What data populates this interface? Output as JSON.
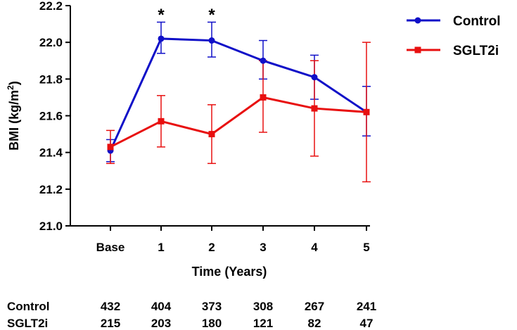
{
  "chart_data": {
    "type": "line",
    "title": "",
    "xlabel": "Time (Years)",
    "ylabel": "BMI (kg/m",
    "ylabel_superscript": "2",
    "ylabel_close": ")",
    "categories": [
      "Base",
      "1",
      "2",
      "3",
      "4",
      "5"
    ],
    "ylim": [
      21.0,
      22.2
    ],
    "yticks": [
      "21.0",
      "21.2",
      "21.4",
      "21.6",
      "21.8",
      "22.0",
      "22.2"
    ],
    "grid": false,
    "legend": "top-right",
    "annotations": [
      {
        "text": "*",
        "category": "1",
        "y": 22.2
      },
      {
        "text": "*",
        "category": "2",
        "y": 22.2
      }
    ],
    "series": [
      {
        "name": "Control",
        "color": "#1010C8",
        "marker": "circle",
        "values": [
          21.41,
          22.02,
          22.01,
          21.9,
          21.81,
          21.62
        ],
        "err_upper": [
          21.47,
          22.11,
          22.11,
          22.01,
          21.93,
          21.76
        ],
        "err_lower": [
          21.35,
          21.94,
          21.92,
          21.8,
          21.69,
          21.49
        ]
      },
      {
        "name": "SGLT2i",
        "color": "#E81010",
        "marker": "square",
        "values": [
          21.43,
          21.57,
          21.5,
          21.7,
          21.64,
          21.62
        ],
        "err_upper": [
          21.52,
          21.71,
          21.66,
          21.9,
          21.9,
          22.0
        ],
        "err_lower": [
          21.34,
          21.43,
          21.34,
          21.51,
          21.38,
          21.24
        ]
      }
    ],
    "table": [
      {
        "label": "Control",
        "counts": [
          "432",
          "404",
          "373",
          "308",
          "267",
          "241"
        ]
      },
      {
        "label": "SGLT2i",
        "counts": [
          "215",
          "203",
          "180",
          "121",
          "82",
          "47"
        ]
      }
    ]
  }
}
